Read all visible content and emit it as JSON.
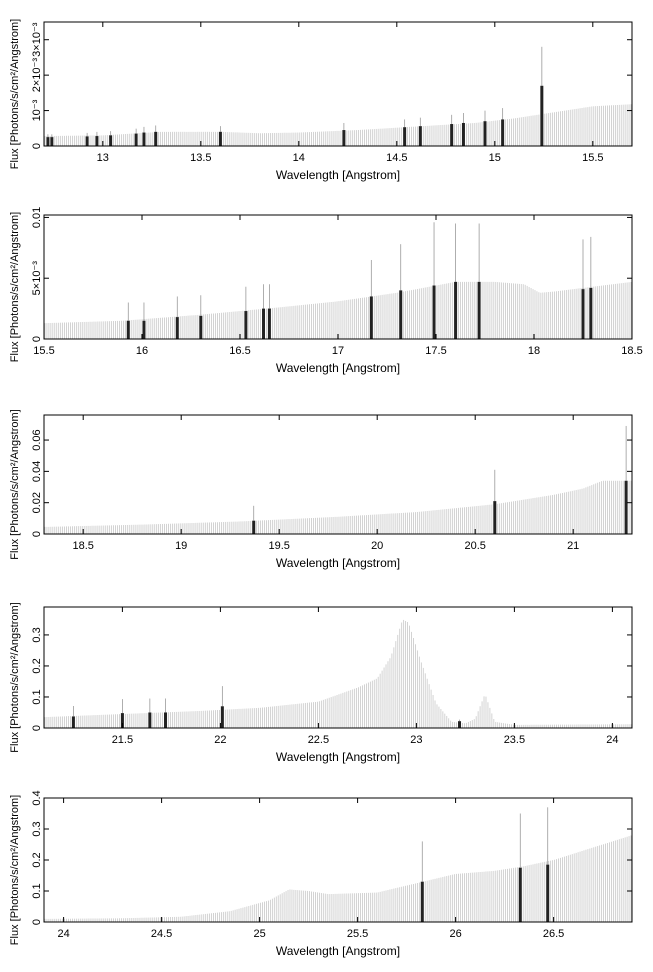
{
  "chart_data": [
    {
      "type": "bar",
      "xlabel": "Wavelength [Angstrom]",
      "ylabel": "Flux [Photons/s/cm²/Angstrom]",
      "xlim": [
        12.7,
        15.7
      ],
      "ylim": [
        0,
        0.0035
      ],
      "xticks": [
        13,
        13.5,
        14,
        14.5,
        15,
        15.5
      ],
      "xtick_labels": [
        "13",
        "13.5",
        "14",
        "14.5",
        "15",
        "15.5"
      ],
      "yticks": [
        0,
        0.001,
        0.002,
        0.003
      ],
      "ytick_labels": [
        "0",
        "10⁻³",
        "2×10⁻³",
        "3×10⁻³"
      ],
      "background_curve": [
        [
          12.7,
          0.00028
        ],
        [
          13.0,
          0.0003
        ],
        [
          13.3,
          0.0004
        ],
        [
          13.6,
          0.0004
        ],
        [
          13.8,
          0.00036
        ],
        [
          14.0,
          0.00038
        ],
        [
          14.3,
          0.00045
        ],
        [
          14.6,
          0.00055
        ],
        [
          14.9,
          0.00065
        ],
        [
          15.1,
          0.00078
        ],
        [
          15.3,
          0.00095
        ],
        [
          15.5,
          0.00112
        ],
        [
          15.7,
          0.00118
        ]
      ],
      "lines": [
        {
          "x": 12.72,
          "y": 0.00025,
          "err": 8e-05
        },
        {
          "x": 12.74,
          "y": 0.00025,
          "err": 8e-05
        },
        {
          "x": 12.92,
          "y": 0.00027,
          "err": 0.0001
        },
        {
          "x": 12.97,
          "y": 0.00028,
          "err": 0.00012
        },
        {
          "x": 13.04,
          "y": 0.0003,
          "err": 0.00012
        },
        {
          "x": 13.17,
          "y": 0.00035,
          "err": 0.00014
        },
        {
          "x": 13.21,
          "y": 0.00038,
          "err": 0.00016
        },
        {
          "x": 13.27,
          "y": 0.0004,
          "err": 0.00018
        },
        {
          "x": 13.6,
          "y": 0.0004,
          "err": 0.00016
        },
        {
          "x": 14.23,
          "y": 0.00045,
          "err": 0.0002
        },
        {
          "x": 14.54,
          "y": 0.00053,
          "err": 0.00022
        },
        {
          "x": 14.62,
          "y": 0.00056,
          "err": 0.00024
        },
        {
          "x": 14.78,
          "y": 0.00062,
          "err": 0.00026
        },
        {
          "x": 14.84,
          "y": 0.00065,
          "err": 0.00028
        },
        {
          "x": 14.95,
          "y": 0.0007,
          "err": 0.0003
        },
        {
          "x": 15.04,
          "y": 0.00075,
          "err": 0.00032
        },
        {
          "x": 15.24,
          "y": 0.0017,
          "err": 0.0011
        }
      ]
    },
    {
      "type": "bar",
      "xlabel": "Wavelength [Angstrom]",
      "ylabel": "Flux [Photons/s/cm²/Angstrom]",
      "xlim": [
        15.5,
        18.5
      ],
      "ylim": [
        0,
        0.0102
      ],
      "xticks": [
        15.5,
        16,
        16.5,
        17,
        17.5,
        18,
        18.5
      ],
      "xtick_labels": [
        "15.5",
        "16",
        "16.5",
        "17",
        "17.5",
        "18",
        "18.5"
      ],
      "yticks": [
        0,
        0.005,
        0.01
      ],
      "ytick_labels": [
        "0",
        "5×10⁻³",
        "0.01"
      ],
      "background_curve": [
        [
          15.5,
          0.0013
        ],
        [
          15.9,
          0.0015
        ],
        [
          16.3,
          0.002
        ],
        [
          16.7,
          0.0026
        ],
        [
          17.0,
          0.0031
        ],
        [
          17.3,
          0.0038
        ],
        [
          17.5,
          0.0044
        ],
        [
          17.6,
          0.0047
        ],
        [
          17.8,
          0.0047
        ],
        [
          17.95,
          0.0045
        ],
        [
          18.03,
          0.0038
        ],
        [
          18.1,
          0.0039
        ],
        [
          18.3,
          0.0043
        ],
        [
          18.5,
          0.0047
        ]
      ],
      "lines": [
        {
          "x": 15.93,
          "y": 0.0015,
          "err": 0.0015
        },
        {
          "x": 16.01,
          "y": 0.0015,
          "err": 0.0015
        },
        {
          "x": 16.18,
          "y": 0.0018,
          "err": 0.0017
        },
        {
          "x": 16.3,
          "y": 0.0019,
          "err": 0.0017
        },
        {
          "x": 16.53,
          "y": 0.0023,
          "err": 0.002
        },
        {
          "x": 16.62,
          "y": 0.0025,
          "err": 0.002
        },
        {
          "x": 16.65,
          "y": 0.0025,
          "err": 0.002
        },
        {
          "x": 17.17,
          "y": 0.0035,
          "err": 0.003
        },
        {
          "x": 17.32,
          "y": 0.004,
          "err": 0.0038
        },
        {
          "x": 17.49,
          "y": 0.0044,
          "err": 0.0052
        },
        {
          "x": 17.6,
          "y": 0.0047,
          "err": 0.0048
        },
        {
          "x": 17.72,
          "y": 0.0047,
          "err": 0.0048
        },
        {
          "x": 18.25,
          "y": 0.0041,
          "err": 0.0041
        },
        {
          "x": 18.29,
          "y": 0.0042,
          "err": 0.0042
        }
      ]
    },
    {
      "type": "bar",
      "xlabel": "Wavelength [Angstrom]",
      "ylabel": "Flux [Photons/s/cm²/Angstrom]",
      "xlim": [
        18.3,
        21.3
      ],
      "ylim": [
        0,
        0.076
      ],
      "xticks": [
        18.5,
        19,
        19.5,
        20,
        20.5,
        21
      ],
      "xtick_labels": [
        "18.5",
        "19",
        "19.5",
        "20",
        "20.5",
        "21"
      ],
      "yticks": [
        0,
        0.02,
        0.04,
        0.06
      ],
      "ytick_labels": [
        "0",
        "0.02",
        "0.04",
        "0.06"
      ],
      "background_curve": [
        [
          18.3,
          0.0045
        ],
        [
          18.8,
          0.006
        ],
        [
          19.3,
          0.008
        ],
        [
          19.8,
          0.011
        ],
        [
          20.2,
          0.014
        ],
        [
          20.6,
          0.019
        ],
        [
          20.9,
          0.025
        ],
        [
          21.05,
          0.029
        ],
        [
          21.15,
          0.034
        ],
        [
          21.3,
          0.034
        ]
      ],
      "lines": [
        {
          "x": 19.37,
          "y": 0.0085,
          "err": 0.0095
        },
        {
          "x": 20.6,
          "y": 0.021,
          "err": 0.02
        },
        {
          "x": 21.27,
          "y": 0.034,
          "err": 0.035
        }
      ]
    },
    {
      "type": "bar",
      "xlabel": "Wavelength [Angstrom]",
      "ylabel": "Flux [Photons/s/cm²/Angstrom]",
      "xlim": [
        21.1,
        24.1
      ],
      "ylim": [
        0,
        0.39
      ],
      "xticks": [
        21.5,
        22,
        22.5,
        23,
        23.5,
        24
      ],
      "xtick_labels": [
        "21.5",
        "22",
        "22.5",
        "23",
        "23.5",
        "24"
      ],
      "yticks": [
        0,
        0.1,
        0.2,
        0.3
      ],
      "ytick_labels": [
        "0",
        "0.1",
        "0.2",
        "0.3"
      ],
      "background_curve": [
        [
          21.1,
          0.035
        ],
        [
          21.5,
          0.045
        ],
        [
          21.9,
          0.055
        ],
        [
          22.2,
          0.065
        ],
        [
          22.5,
          0.085
        ],
        [
          22.7,
          0.13
        ],
        [
          22.8,
          0.16
        ],
        [
          22.87,
          0.23
        ],
        [
          22.93,
          0.35
        ],
        [
          22.96,
          0.34
        ],
        [
          23.02,
          0.22
        ],
        [
          23.1,
          0.08
        ],
        [
          23.18,
          0.02
        ],
        [
          23.25,
          0.015
        ],
        [
          23.3,
          0.03
        ],
        [
          23.35,
          0.11
        ],
        [
          23.4,
          0.02
        ],
        [
          23.5,
          0.01
        ],
        [
          24.1,
          0.012
        ]
      ],
      "lines": [
        {
          "x": 21.25,
          "y": 0.037,
          "err": 0.034
        },
        {
          "x": 21.5,
          "y": 0.048,
          "err": 0.045
        },
        {
          "x": 21.64,
          "y": 0.05,
          "err": 0.045
        },
        {
          "x": 21.72,
          "y": 0.05,
          "err": 0.045
        },
        {
          "x": 22.01,
          "y": 0.07,
          "err": 0.065
        },
        {
          "x": 23.22,
          "y": 0.022,
          "err": 0.005
        }
      ]
    },
    {
      "type": "bar",
      "xlabel": "Wavelength [Angstrom]",
      "ylabel": "Flux [Photons/s/cm²/Angstrom]",
      "xlim": [
        23.9,
        26.9
      ],
      "ylim": [
        0,
        0.4
      ],
      "xticks": [
        24,
        24.5,
        25,
        25.5,
        26,
        26.5
      ],
      "xtick_labels": [
        "24",
        "24.5",
        "25",
        "25.5",
        "26",
        "26.5"
      ],
      "yticks": [
        0,
        0.1,
        0.2,
        0.3,
        0.4
      ],
      "ytick_labels": [
        "0",
        "0.1",
        "0.2",
        "0.3",
        "0.4"
      ],
      "background_curve": [
        [
          23.9,
          0.01
        ],
        [
          24.3,
          0.012
        ],
        [
          24.6,
          0.017
        ],
        [
          24.85,
          0.035
        ],
        [
          25.05,
          0.07
        ],
        [
          25.15,
          0.105
        ],
        [
          25.25,
          0.1
        ],
        [
          25.35,
          0.09
        ],
        [
          25.6,
          0.095
        ],
        [
          25.8,
          0.125
        ],
        [
          26.0,
          0.155
        ],
        [
          26.2,
          0.165
        ],
        [
          26.35,
          0.18
        ],
        [
          26.5,
          0.2
        ],
        [
          26.7,
          0.24
        ],
        [
          26.9,
          0.28
        ]
      ],
      "lines": [
        {
          "x": 25.83,
          "y": 0.13,
          "err": 0.13
        },
        {
          "x": 26.33,
          "y": 0.175,
          "err": 0.175
        },
        {
          "x": 26.47,
          "y": 0.185,
          "err": 0.185
        }
      ]
    }
  ]
}
